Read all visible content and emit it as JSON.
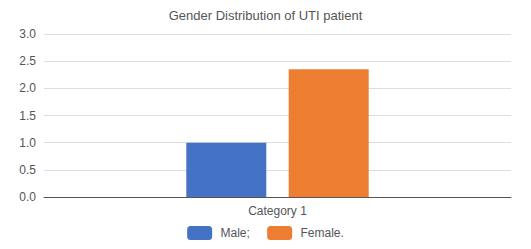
{
  "chart_data": {
    "type": "bar",
    "title": "Gender Distribution of UTI patient",
    "categories": [
      "Category 1"
    ],
    "series": [
      {
        "name": " Male; ",
        "color": "#4472C4",
        "values": [
          1.0
        ]
      },
      {
        "name": " Female.",
        "color": "#ED7D31",
        "values": [
          2.35
        ]
      }
    ],
    "ylim": [
      0,
      3
    ],
    "yticks": [
      {
        "value": 0,
        "label": "0.0"
      },
      0.5,
      {
        "value": 1,
        "label": "1.0"
      },
      1.5,
      {
        "value": 2,
        "label": "2.0"
      },
      2.5,
      {
        "value": 3,
        "label": "3.0"
      }
    ],
    "grid": true,
    "legend": "bottom"
  }
}
